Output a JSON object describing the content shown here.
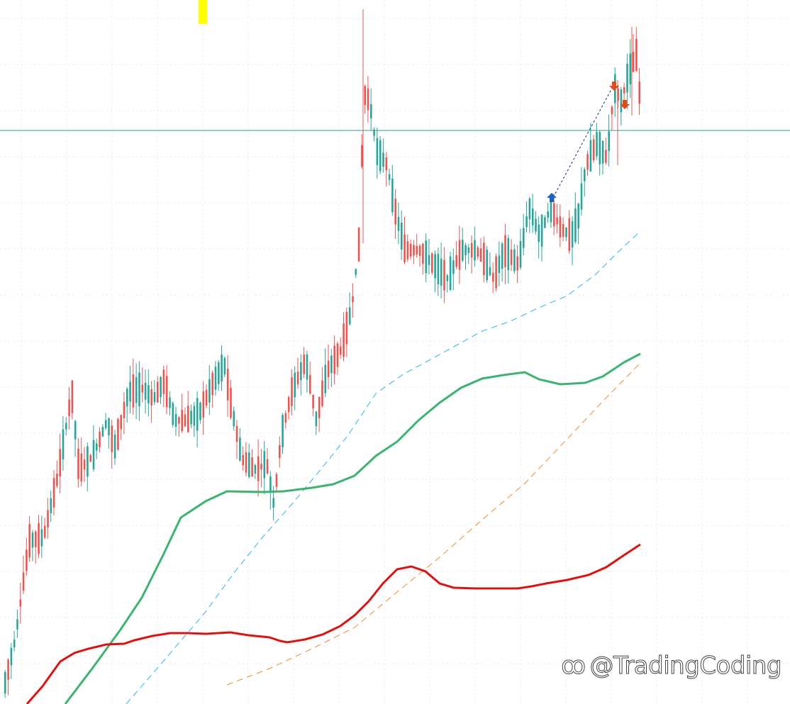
{
  "colors": {
    "background": "#ffffff",
    "grid": "#e9e9ee",
    "up": "#26a69a",
    "down": "#ef5350",
    "ma_fast": "#e01010",
    "ma_mid": "#3cb371",
    "ma_slow": "#29b6f6",
    "ma_long": "#f08c2a",
    "hline": "#2a9d8f",
    "marker": "#ffff00",
    "buy_arrow": "#1565c0",
    "sell_arrow": "#e64a19"
  },
  "watermark": {
    "text": "@TradingCoding",
    "icon": "weibo-like-logo-icon"
  },
  "chart_data": {
    "type": "candlestick",
    "title": "",
    "xlabel": "",
    "ylabel": "",
    "ylim": [
      0,
      100
    ],
    "grid": true,
    "legend": "none",
    "horizontal_line": 84.3,
    "ma_fast": [
      [
        38,
        0
      ],
      [
        60,
        25
      ],
      [
        85,
        60
      ],
      [
        105,
        72
      ],
      [
        125,
        78
      ],
      [
        150,
        84
      ],
      [
        175,
        85
      ],
      [
        190,
        90
      ],
      [
        215,
        96
      ],
      [
        240,
        100
      ],
      [
        265,
        100
      ],
      [
        290,
        99
      ],
      [
        325,
        101
      ],
      [
        350,
        97
      ],
      [
        380,
        94
      ],
      [
        395,
        89
      ],
      [
        405,
        87
      ],
      [
        430,
        91
      ],
      [
        455,
        98
      ],
      [
        480,
        110
      ],
      [
        500,
        125
      ],
      [
        520,
        145
      ],
      [
        540,
        170
      ],
      [
        560,
        190
      ],
      [
        580,
        194
      ],
      [
        600,
        187
      ],
      [
        620,
        170
      ],
      [
        640,
        164
      ],
      [
        670,
        163
      ],
      [
        700,
        163
      ],
      [
        730,
        163
      ],
      [
        750,
        166
      ],
      [
        770,
        170
      ],
      [
        800,
        175
      ],
      [
        830,
        182
      ],
      [
        855,
        193
      ],
      [
        880,
        210
      ],
      [
        903,
        225
      ]
    ],
    "ma_mid": [
      [
        92,
        0
      ],
      [
        130,
        50
      ],
      [
        170,
        105
      ],
      [
        200,
        150
      ],
      [
        230,
        210
      ],
      [
        255,
        263
      ],
      [
        290,
        286
      ],
      [
        320,
        300
      ],
      [
        370,
        299
      ],
      [
        400,
        300
      ],
      [
        440,
        305
      ],
      [
        470,
        310
      ],
      [
        500,
        322
      ],
      [
        530,
        350
      ],
      [
        560,
        370
      ],
      [
        590,
        400
      ],
      [
        620,
        425
      ],
      [
        650,
        446
      ],
      [
        680,
        459
      ],
      [
        710,
        464
      ],
      [
        740,
        468
      ],
      [
        760,
        458
      ],
      [
        790,
        451
      ],
      [
        825,
        453
      ],
      [
        850,
        462
      ],
      [
        880,
        482
      ],
      [
        903,
        494
      ]
    ],
    "ma_slow": [
      [
        178,
        0
      ],
      [
        230,
        60
      ],
      [
        290,
        130
      ],
      [
        330,
        185
      ],
      [
        370,
        235
      ],
      [
        410,
        280
      ],
      [
        450,
        328
      ],
      [
        490,
        378
      ],
      [
        530,
        438
      ],
      [
        570,
        466
      ],
      [
        600,
        482
      ],
      [
        640,
        504
      ],
      [
        680,
        526
      ],
      [
        720,
        540
      ],
      [
        760,
        559
      ],
      [
        800,
        576
      ],
      [
        840,
        606
      ],
      [
        870,
        636
      ],
      [
        903,
        667
      ]
    ],
    "ma_long": [
      [
        320,
        27
      ],
      [
        380,
        50
      ],
      [
        440,
        78
      ],
      [
        500,
        108
      ],
      [
        560,
        158
      ],
      [
        620,
        207
      ],
      [
        680,
        260
      ],
      [
        740,
        311
      ],
      [
        800,
        374
      ],
      [
        850,
        427
      ],
      [
        903,
        481
      ]
    ],
    "signals": [
      {
        "type": "buy",
        "x": 778,
        "y": 714
      },
      {
        "type": "sell",
        "x": 866,
        "y": 872
      },
      {
        "type": "sell",
        "x": 881,
        "y": 846
      }
    ],
    "signal_line": [
      [
        783,
        720
      ],
      [
        868,
        878
      ]
    ]
  }
}
